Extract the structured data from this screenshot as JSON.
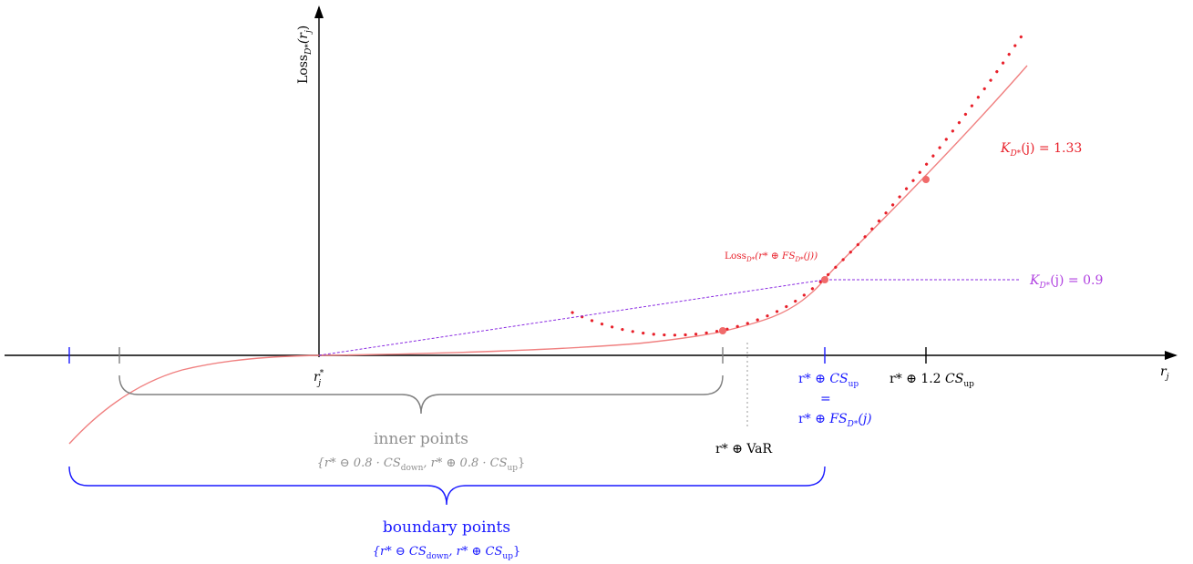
{
  "colors": {
    "axis": "#000000",
    "loss_curve": "#f08080",
    "loss_dots": "#e8202a",
    "marker_points": "#f06a6a",
    "kappa_red": "#e8202a",
    "kappa_purple": "#b040e0",
    "purple_line": "#8a2be2",
    "boundary_blue": "#1a1aff",
    "inner_gray": "#808080"
  },
  "axes": {
    "y_label_main": "Loss",
    "y_label_sub": "D*",
    "y_label_arg": "(r",
    "y_label_arg_sub": "j",
    "y_label_close": ")",
    "x_label": "r",
    "x_label_sub": "j"
  },
  "ticks": {
    "origin_main": "r",
    "origin_sup": "*",
    "origin_sub": "j",
    "var_label": "r* ⊕ VaR",
    "cs_up_prefix": "r* ⊕ ",
    "cs_up_main": "CS",
    "cs_up_sub": "up",
    "equals": "=",
    "fs_prefix": "r* ⊕ ",
    "fs_main": "FS",
    "fs_sub": "D*",
    "fs_arg": "(j)",
    "cs12_prefix": "r* ⊕ 1.2 ",
    "cs12_main": "CS",
    "cs12_sub": "up"
  },
  "annotations": {
    "kappa_red_main": "K",
    "kappa_red_sub": "D*",
    "kappa_red_rest": "(j) = 1.33",
    "kappa_purple_main": "K",
    "kappa_purple_sub": "D*",
    "kappa_purple_rest": "(j) = 0.9",
    "loss_point_main": "Loss",
    "loss_point_sub": "D*",
    "loss_point_rest": "(r* ⊕ FS",
    "loss_point_sub2": "D*",
    "loss_point_end": "(j))"
  },
  "groups": {
    "inner_title": "inner points",
    "inner_formula_open": "{r* ⊖ 0.8 · CS",
    "inner_formula_sub1": "down",
    "inner_formula_mid": ", r* ⊕ 0.8 · CS",
    "inner_formula_sub2": "up",
    "inner_formula_close": "}",
    "boundary_title": "boundary points",
    "boundary_formula_open": "{r* ⊖ CS",
    "boundary_formula_sub1": "down",
    "boundary_formula_mid": ", r* ⊕ CS",
    "boundary_formula_sub2": "up",
    "boundary_formula_close": "}"
  }
}
